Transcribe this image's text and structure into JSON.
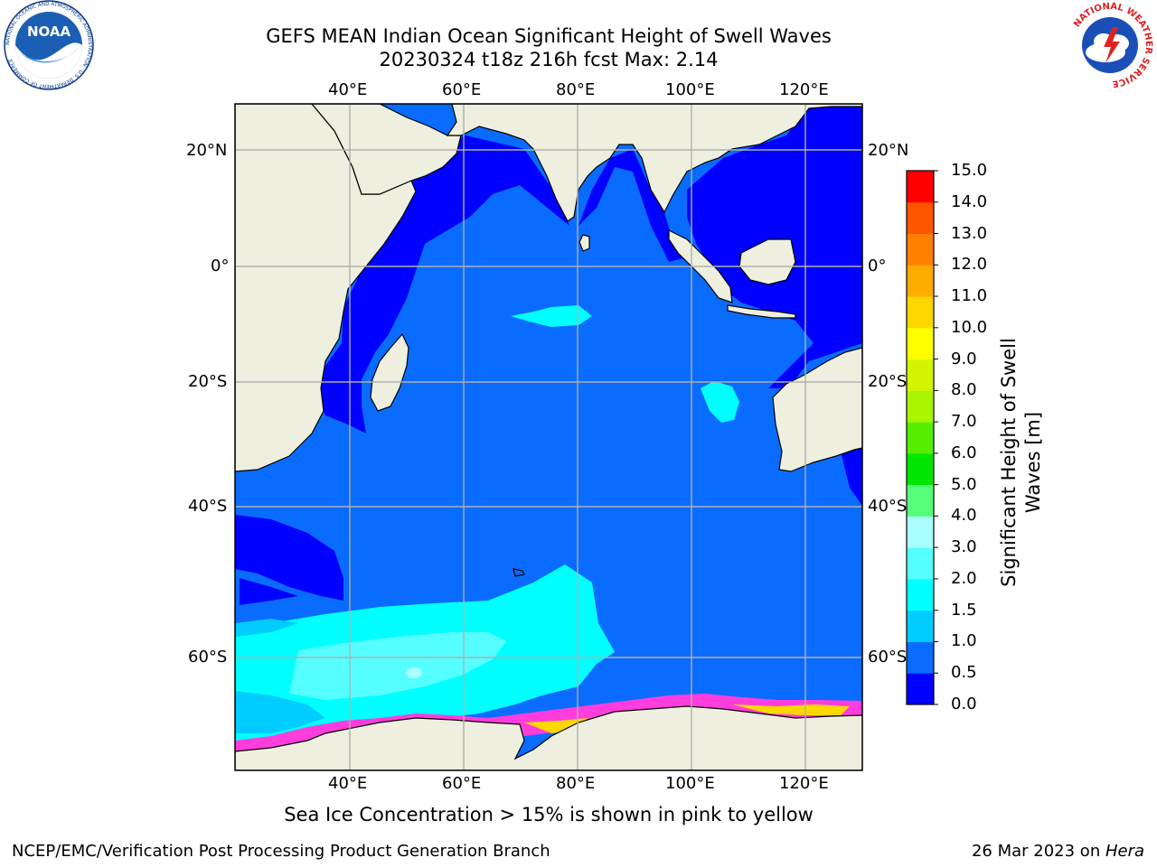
{
  "title": {
    "line1": "GEFS MEAN Indian Ocean Significant Height of Swell Waves",
    "line2": "20230324 t18z 216h fcst   Max: 2.14"
  },
  "map": {
    "lon_ticks": [
      "40°E",
      "60°E",
      "80°E",
      "100°E",
      "120°E"
    ],
    "lat_ticks": [
      "20°N",
      "0°",
      "20°S",
      "40°S",
      "60°S"
    ],
    "extent": {
      "lon": [
        20,
        130
      ],
      "lat": [
        -72,
        27
      ]
    },
    "colors": {
      "land": "#efefdf",
      "coast": "#000000",
      "grid": "#b0b0b0"
    }
  },
  "colorbar": {
    "label": "Significant Height of Swell Waves [m]",
    "label_line1": "Significant Height of Swell",
    "label_line2": "Waves [m]",
    "levels": [
      "0.0",
      "0.5",
      "1.0",
      "1.5",
      "2.0",
      "3.0",
      "4.0",
      "5.0",
      "6.0",
      "7.0",
      "8.0",
      "9.0",
      "10.0",
      "11.0",
      "12.0",
      "13.0",
      "14.0",
      "15.0"
    ],
    "colors": [
      "#0000fe",
      "#0a6cff",
      "#00cdfd",
      "#00ffff",
      "#55ffff",
      "#aaffff",
      "#55ff7a",
      "#00e600",
      "#55ee00",
      "#aaf500",
      "#d4f500",
      "#ffff00",
      "#ffd700",
      "#ffab00",
      "#ff8000",
      "#ff5500",
      "#ff0000"
    ]
  },
  "caption": "Sea Ice Concentration > 15% is shown in pink to yellow",
  "footer": {
    "left": "NCEP/EMC/Verification Post Processing Product Generation Branch",
    "right_prefix": "26 Mar 2023 on ",
    "right_host": "Hera"
  },
  "logos": {
    "noaa": {
      "text": "NOAA",
      "ring_text": "NATIONAL OCEANIC AND ATMOSPHERIC ADMINISTRATION · U.S. DEPARTMENT OF COMMERCE"
    },
    "nws": {
      "ring_text": "NATIONAL WEATHER SERVICE"
    }
  }
}
